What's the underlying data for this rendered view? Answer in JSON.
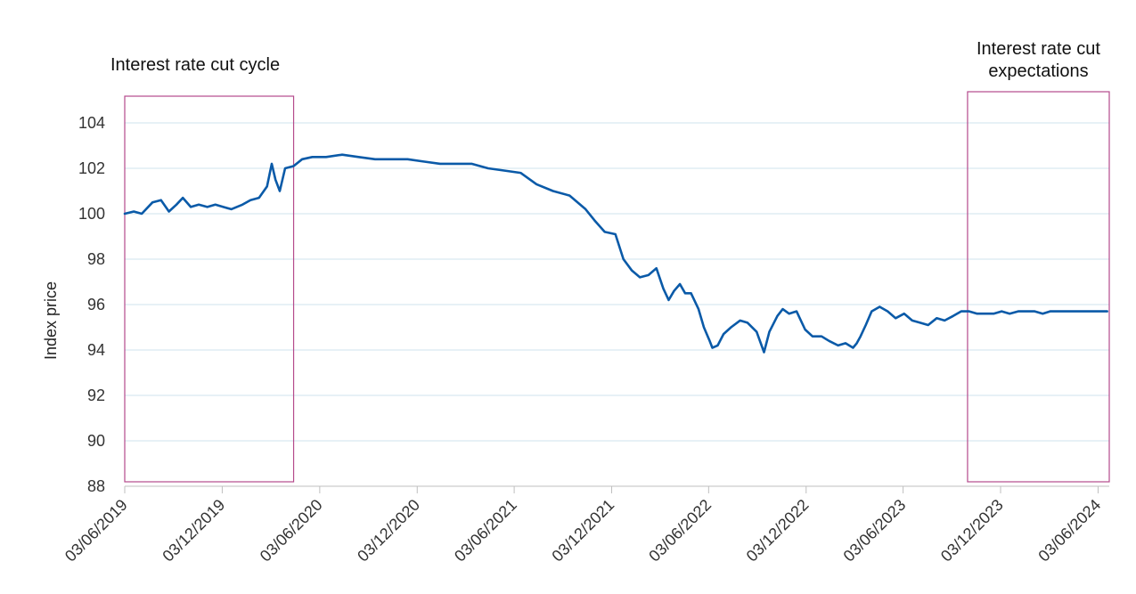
{
  "chart_data": {
    "type": "line",
    "title": "",
    "xlabel": "",
    "ylabel": "Index price",
    "ylim": [
      88,
      104
    ],
    "yticks": [
      88,
      90,
      92,
      94,
      96,
      98,
      100,
      102,
      104
    ],
    "xlim": [
      "2019-06-03",
      "2024-06-24"
    ],
    "xticks": [
      "03/06/2019",
      "03/12/2019",
      "03/06/2020",
      "03/12/2020",
      "03/06/2021",
      "03/12/2021",
      "03/06/2022",
      "03/12/2022",
      "03/06/2023",
      "03/12/2023",
      "03/06/2024"
    ],
    "xtick_dates": [
      "2019-06-03",
      "2019-12-03",
      "2020-06-03",
      "2020-12-03",
      "2021-06-03",
      "2021-12-03",
      "2022-06-03",
      "2022-12-03",
      "2023-06-03",
      "2023-12-03",
      "2024-06-03"
    ],
    "grid": "horizontal",
    "colors": {
      "series": "#0a5aa8",
      "box": "#b54a8c",
      "grid": "#cfe3ec"
    },
    "annotations": [
      {
        "label": "Interest rate cut cycle",
        "start": "2019-06-03",
        "end": "2020-04-15"
      },
      {
        "label": "Interest rate cut expectations",
        "start": "2023-10-02",
        "end": "2024-06-24"
      }
    ],
    "series": [
      {
        "name": "",
        "x": [
          "2019-06-03",
          "2019-06-20",
          "2019-07-05",
          "2019-07-25",
          "2019-08-10",
          "2019-08-25",
          "2019-09-08",
          "2019-09-20",
          "2019-10-05",
          "2019-10-20",
          "2019-11-05",
          "2019-11-20",
          "2019-12-05",
          "2019-12-20",
          "2020-01-10",
          "2020-01-25",
          "2020-02-10",
          "2020-02-25",
          "2020-03-05",
          "2020-03-12",
          "2020-03-20",
          "2020-03-30",
          "2020-04-15",
          "2020-05-01",
          "2020-05-20",
          "2020-06-15",
          "2020-07-15",
          "2020-08-15",
          "2020-09-15",
          "2020-10-15",
          "2020-11-15",
          "2020-12-15",
          "2021-01-15",
          "2021-02-15",
          "2021-03-15",
          "2021-04-15",
          "2021-05-15",
          "2021-06-15",
          "2021-07-15",
          "2021-08-15",
          "2021-09-15",
          "2021-10-15",
          "2021-11-01",
          "2021-11-20",
          "2021-12-10",
          "2021-12-25",
          "2022-01-10",
          "2022-01-25",
          "2022-02-10",
          "2022-02-25",
          "2022-03-10",
          "2022-03-20",
          "2022-03-30",
          "2022-04-10",
          "2022-04-20",
          "2022-05-01",
          "2022-05-15",
          "2022-05-25",
          "2022-06-05",
          "2022-06-10",
          "2022-06-20",
          "2022-07-01",
          "2022-07-15",
          "2022-08-01",
          "2022-08-15",
          "2022-09-01",
          "2022-09-15",
          "2022-09-25",
          "2022-10-10",
          "2022-10-20",
          "2022-11-01",
          "2022-11-15",
          "2022-12-01",
          "2022-12-15",
          "2023-01-01",
          "2023-01-15",
          "2023-02-01",
          "2023-02-15",
          "2023-03-01",
          "2023-03-08",
          "2023-03-15",
          "2023-03-25",
          "2023-04-05",
          "2023-04-20",
          "2023-05-05",
          "2023-05-20",
          "2023-06-05",
          "2023-06-20",
          "2023-07-05",
          "2023-07-20",
          "2023-08-05",
          "2023-08-20",
          "2023-09-05",
          "2023-09-20",
          "2023-10-05",
          "2023-10-20",
          "2023-11-05",
          "2023-11-20",
          "2023-12-05",
          "2023-12-20",
          "2024-01-05",
          "2024-01-20",
          "2024-02-05",
          "2024-02-20",
          "2024-03-05",
          "2024-03-20",
          "2024-04-05",
          "2024-04-20",
          "2024-05-05",
          "2024-05-20",
          "2024-06-05",
          "2024-06-20"
        ],
        "y": [
          100.0,
          100.1,
          100.0,
          100.5,
          100.6,
          100.1,
          100.4,
          100.7,
          100.3,
          100.4,
          100.3,
          100.4,
          100.3,
          100.2,
          100.4,
          100.6,
          100.7,
          101.2,
          102.2,
          101.5,
          101.0,
          102.0,
          102.1,
          102.4,
          102.5,
          102.5,
          102.6,
          102.5,
          102.4,
          102.4,
          102.4,
          102.3,
          102.2,
          102.2,
          102.2,
          102.0,
          101.9,
          101.8,
          101.3,
          101.0,
          100.8,
          100.2,
          99.7,
          99.2,
          99.1,
          98.0,
          97.5,
          97.2,
          97.3,
          97.6,
          96.7,
          96.2,
          96.6,
          96.9,
          96.5,
          96.5,
          95.8,
          95.0,
          94.4,
          94.1,
          94.2,
          94.7,
          95.0,
          95.3,
          95.2,
          94.8,
          93.9,
          94.8,
          95.5,
          95.8,
          95.6,
          95.7,
          94.9,
          94.6,
          94.6,
          94.4,
          94.2,
          94.3,
          94.1,
          94.3,
          94.6,
          95.1,
          95.7,
          95.9,
          95.7,
          95.4,
          95.6,
          95.3,
          95.2,
          95.1,
          95.4,
          95.3,
          95.5,
          95.7,
          95.7,
          95.6,
          95.6,
          95.6,
          95.7,
          95.6,
          95.7,
          95.7,
          95.7,
          95.6,
          95.7,
          95.7,
          95.7,
          95.7,
          95.7,
          95.7,
          95.7,
          95.7
        ]
      }
    ]
  }
}
